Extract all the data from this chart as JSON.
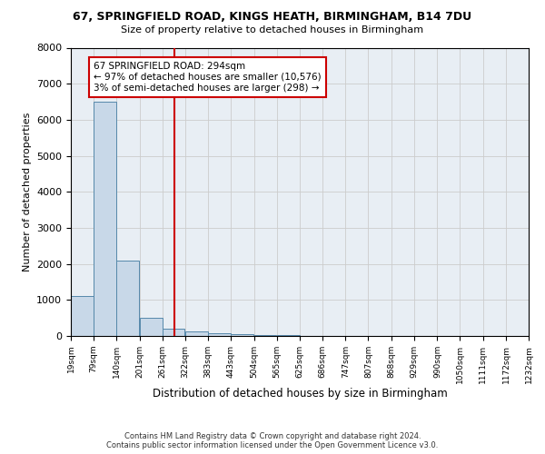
{
  "title1": "67, SPRINGFIELD ROAD, KINGS HEATH, BIRMINGHAM, B14 7DU",
  "title2": "Size of property relative to detached houses in Birmingham",
  "xlabel": "Distribution of detached houses by size in Birmingham",
  "ylabel": "Number of detached properties",
  "property_size": 294,
  "property_label": "67 SPRINGFIELD ROAD: 294sqm",
  "annotation_left": "← 97% of detached houses are smaller (10,576)",
  "annotation_right": "3% of semi-detached houses are larger (298) →",
  "footer1": "Contains HM Land Registry data © Crown copyright and database right 2024.",
  "footer2": "Contains public sector information licensed under the Open Government Licence v3.0.",
  "bar_color": "#c8d8e8",
  "bar_edge_color": "#5588aa",
  "vline_color": "#cc0000",
  "annotation_box_color": "#cc0000",
  "bins": [
    19,
    79,
    140,
    201,
    261,
    322,
    383,
    443,
    504,
    565,
    625,
    686,
    747,
    807,
    868,
    929,
    990,
    1050,
    1111,
    1172,
    1232
  ],
  "bin_labels": [
    "19sqm",
    "79sqm",
    "140sqm",
    "201sqm",
    "261sqm",
    "322sqm",
    "383sqm",
    "443sqm",
    "504sqm",
    "565sqm",
    "625sqm",
    "686sqm",
    "747sqm",
    "807sqm",
    "868sqm",
    "929sqm",
    "990sqm",
    "1050sqm",
    "1111sqm",
    "1172sqm",
    "1232sqm"
  ],
  "counts": [
    1100,
    6500,
    2100,
    500,
    200,
    120,
    70,
    50,
    30,
    20,
    10,
    5,
    3,
    2,
    1,
    1,
    0,
    0,
    0,
    0
  ],
  "ylim": [
    0,
    8000
  ],
  "yticks": [
    0,
    1000,
    2000,
    3000,
    4000,
    5000,
    6000,
    7000,
    8000
  ],
  "grid_color": "#cccccc",
  "background_color": "#e8eef4"
}
